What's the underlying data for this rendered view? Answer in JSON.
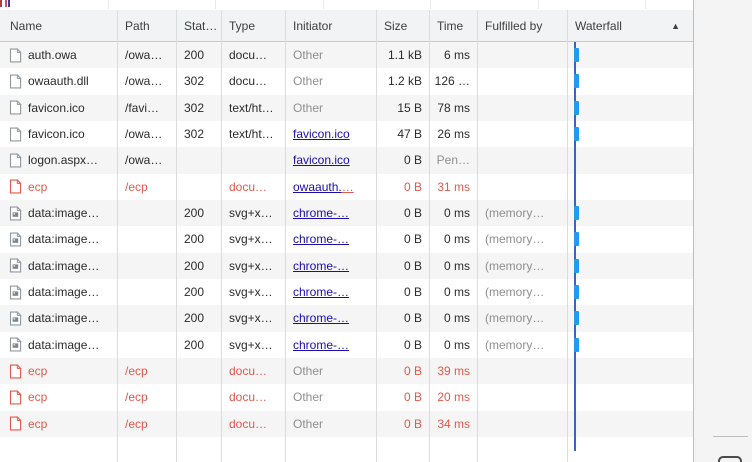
{
  "header": {
    "columns": [
      {
        "id": "name",
        "label": "Name"
      },
      {
        "id": "path",
        "label": "Path"
      },
      {
        "id": "status",
        "label": "Stat…"
      },
      {
        "id": "type",
        "label": "Type"
      },
      {
        "id": "initiator",
        "label": "Initiator"
      },
      {
        "id": "size",
        "label": "Size"
      },
      {
        "id": "time",
        "label": "Time"
      },
      {
        "id": "fulfilled",
        "label": "Fulfilled by"
      },
      {
        "id": "waterfall",
        "label": "Waterfall"
      }
    ],
    "sort_column": "Waterfall",
    "sort_icon": "▲"
  },
  "table": {
    "rows": [
      {
        "name": "auth.owa",
        "icon": "doc",
        "error": false,
        "path": "/owa…",
        "status": "200",
        "type": "docu…",
        "initiator": "Other",
        "initiator_link": false,
        "size": "1.1 kB",
        "time": "6 ms",
        "fulfilled": "",
        "bar": true
      },
      {
        "name": "owaauth.dll",
        "icon": "doc",
        "error": false,
        "path": "/owa…",
        "status": "302",
        "type": "docu…",
        "initiator": "Other",
        "initiator_link": false,
        "size": "1.2 kB",
        "time": "126 …",
        "fulfilled": "",
        "bar": true
      },
      {
        "name": "favicon.ico",
        "icon": "doc",
        "error": false,
        "path": "/favi…",
        "status": "302",
        "type": "text/ht…",
        "initiator": "Other",
        "initiator_link": false,
        "size": "15 B",
        "time": "78 ms",
        "fulfilled": "",
        "bar": true
      },
      {
        "name": "favicon.ico",
        "icon": "doc",
        "error": false,
        "path": "/owa…",
        "status": "302",
        "type": "text/ht…",
        "initiator": "favicon.ico",
        "initiator_link": true,
        "size": "47 B",
        "time": "26 ms",
        "fulfilled": "",
        "bar": true
      },
      {
        "name": "logon.aspx…",
        "icon": "doc",
        "error": false,
        "path": "/owa…",
        "status": "",
        "type": "",
        "initiator": "favicon.ico",
        "initiator_link": true,
        "size": "0 B",
        "time": "Pen…",
        "time_muted": true,
        "fulfilled": "",
        "bar": false
      },
      {
        "name": "ecp",
        "icon": "doc",
        "error": true,
        "path": "/ecp",
        "status": "",
        "type": "docu…",
        "initiator": "owaauth.",
        "initiator_link": true,
        "initiator_suffix": "…",
        "size": "0 B",
        "time": "31 ms",
        "fulfilled": "",
        "bar": false
      },
      {
        "name": "data:image…",
        "icon": "img",
        "error": false,
        "path": "",
        "status": "200",
        "type": "svg+x…",
        "initiator": "chrome-…",
        "initiator_link": true,
        "size": "0 B",
        "time": "0 ms",
        "fulfilled": "(memory…",
        "bar": true
      },
      {
        "name": "data:image…",
        "icon": "img",
        "error": false,
        "path": "",
        "status": "200",
        "type": "svg+x…",
        "initiator": "chrome-…",
        "initiator_link": true,
        "size": "0 B",
        "time": "0 ms",
        "fulfilled": "(memory…",
        "bar": true
      },
      {
        "name": "data:image…",
        "icon": "img",
        "error": false,
        "path": "",
        "status": "200",
        "type": "svg+x…",
        "initiator": "chrome-…",
        "initiator_link": true,
        "size": "0 B",
        "time": "0 ms",
        "fulfilled": "(memory…",
        "bar": true
      },
      {
        "name": "data:image…",
        "icon": "img",
        "error": false,
        "path": "",
        "status": "200",
        "type": "svg+x…",
        "initiator": "chrome-…",
        "initiator_link": true,
        "size": "0 B",
        "time": "0 ms",
        "fulfilled": "(memory…",
        "bar": true
      },
      {
        "name": "data:image…",
        "icon": "img",
        "error": false,
        "path": "",
        "status": "200",
        "type": "svg+x…",
        "initiator": "chrome-…",
        "initiator_link": true,
        "size": "0 B",
        "time": "0 ms",
        "fulfilled": "(memory…",
        "bar": true
      },
      {
        "name": "data:image…",
        "icon": "img",
        "error": false,
        "path": "",
        "status": "200",
        "type": "svg+x…",
        "initiator": "chrome-…",
        "initiator_link": true,
        "size": "0 B",
        "time": "0 ms",
        "fulfilled": "(memory…",
        "bar": true
      },
      {
        "name": "ecp",
        "icon": "doc",
        "error": true,
        "path": "/ecp",
        "status": "",
        "type": "docu…",
        "initiator": "Other",
        "initiator_link": false,
        "size": "0 B",
        "time": "39 ms",
        "fulfilled": "",
        "bar": false
      },
      {
        "name": "ecp",
        "icon": "doc",
        "error": true,
        "path": "/ecp",
        "status": "",
        "type": "docu…",
        "initiator": "Other",
        "initiator_link": false,
        "size": "0 B",
        "time": "20 ms",
        "fulfilled": "",
        "bar": false
      },
      {
        "name": "ecp",
        "icon": "doc",
        "error": true,
        "path": "/ecp",
        "status": "",
        "type": "docu…",
        "initiator": "Other",
        "initiator_link": false,
        "size": "0 B",
        "time": "34 ms",
        "fulfilled": "",
        "bar": false
      }
    ]
  },
  "colors": {
    "error_red": "#e3584a",
    "link_navy": "#1a0dab",
    "waterfall_bar_blue": "#1f9bf0",
    "waterfall_event_line_blue": "#3766c0",
    "header_bg": "#f1f3f4",
    "row_stripe": "#f5f5f6",
    "muted_text": "#8f8f8f"
  }
}
